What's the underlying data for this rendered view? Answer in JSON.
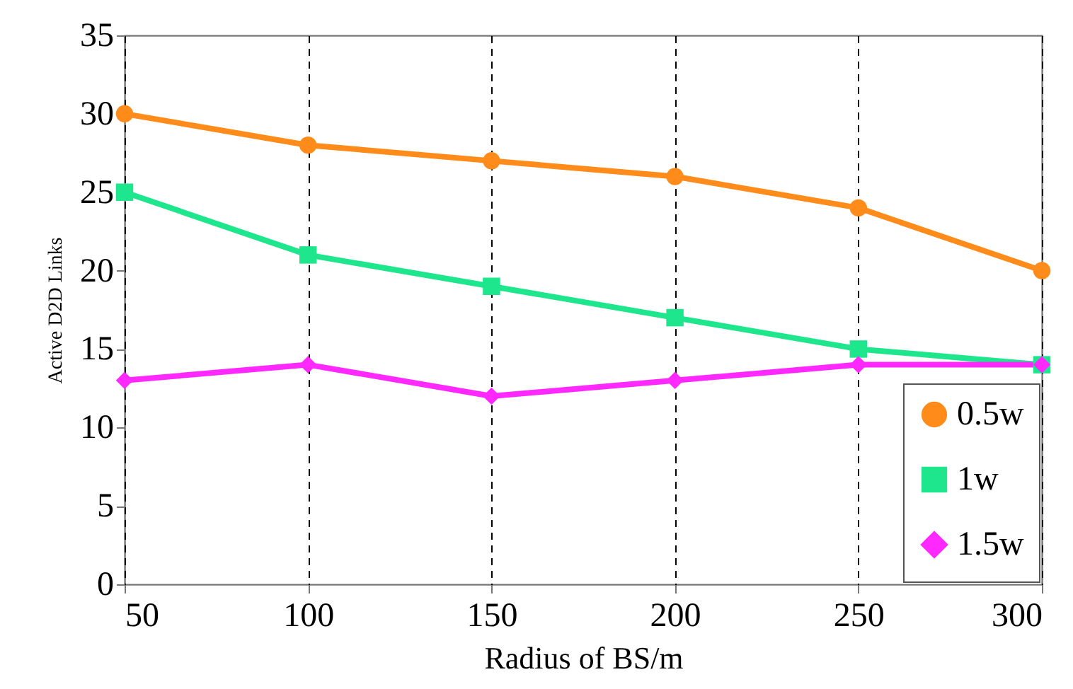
{
  "chart_data": {
    "type": "line",
    "xlabel": "Radius of BS/m",
    "ylabel": "Active D2D Links",
    "x": [
      50,
      100,
      150,
      200,
      250,
      300
    ],
    "series": [
      {
        "name": "0.5w",
        "color": "#ff8c1a",
        "marker": "circle",
        "values": [
          30,
          28,
          27,
          26,
          24,
          20
        ]
      },
      {
        "name": "1w",
        "color": "#1ee68c",
        "marker": "square",
        "values": [
          25,
          21,
          19,
          17,
          15,
          14
        ]
      },
      {
        "name": "1.5w",
        "color": "#ff28ff",
        "marker": "diamond",
        "values": [
          13,
          14,
          12,
          13,
          14,
          14
        ]
      }
    ],
    "xlim": [
      50,
      300
    ],
    "xticks": [
      50,
      100,
      150,
      200,
      250,
      300
    ],
    "ylim": [
      0,
      35
    ],
    "yticks": [
      0,
      5,
      10,
      15,
      20,
      25,
      30,
      35
    ],
    "grid": "x",
    "legend": "bottom right",
    "line_style": "solid"
  }
}
